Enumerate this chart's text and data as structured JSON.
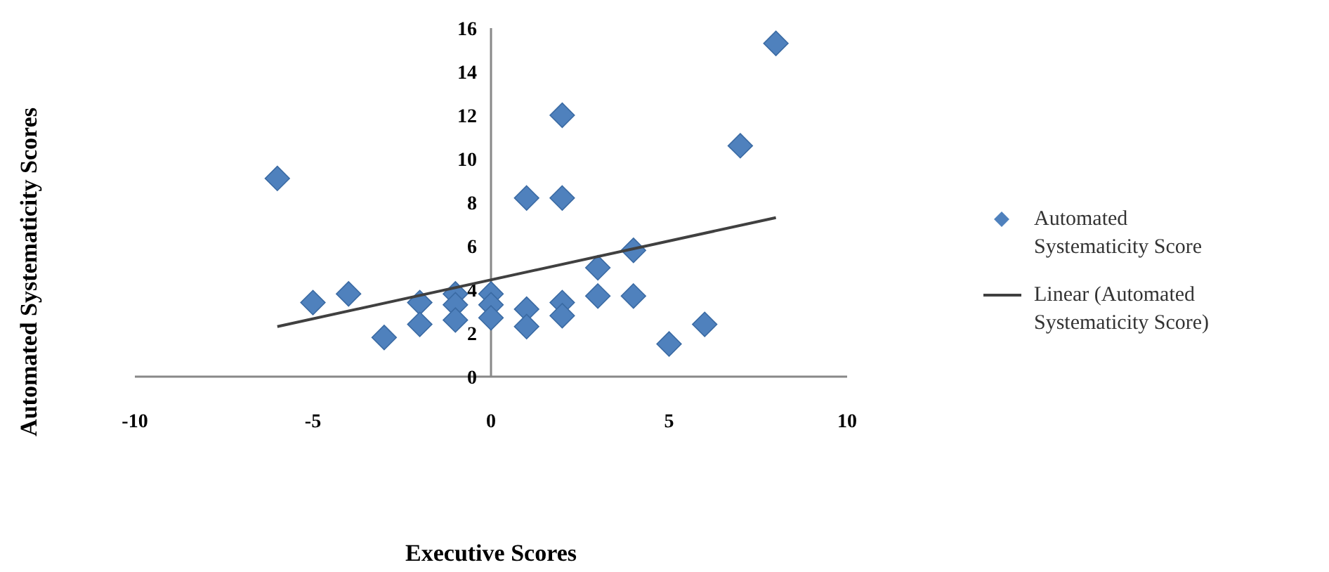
{
  "chart_data": {
    "type": "scatter",
    "xlabel": "Executive Scores",
    "ylabel": "Automated Systematicity Scores",
    "xlim": [
      -10,
      10
    ],
    "xticks": [
      -10,
      -5,
      0,
      5,
      10
    ],
    "ylim": [
      0,
      16
    ],
    "yticks": [
      0,
      2,
      4,
      6,
      8,
      10,
      12,
      14,
      16
    ],
    "grid": false,
    "legend": "right",
    "series": [
      {
        "name": "Automated Systematicity Score",
        "marker": "diamond",
        "color": "#4f81bd",
        "x": [
          -6,
          -5,
          -4,
          -3,
          -2,
          -2,
          -1,
          -1,
          -1,
          0,
          0,
          0,
          1,
          1,
          1,
          2,
          2,
          2,
          2,
          3,
          3,
          4,
          4,
          5,
          6,
          7,
          8
        ],
        "values": [
          9.1,
          3.4,
          3.8,
          1.8,
          3.4,
          2.4,
          3.8,
          3.3,
          2.6,
          3.8,
          3.3,
          2.7,
          8.2,
          3.1,
          2.3,
          12,
          8.2,
          3.4,
          2.8,
          5,
          3.7,
          5.8,
          3.7,
          1.5,
          2.4,
          10.6,
          15.3
        ]
      },
      {
        "name": "Linear (Automated Systematicity Score)",
        "type": "line",
        "marker": "none",
        "color": "#404040",
        "x": [
          -6,
          8
        ],
        "values": [
          2.3,
          7.3
        ]
      }
    ]
  }
}
